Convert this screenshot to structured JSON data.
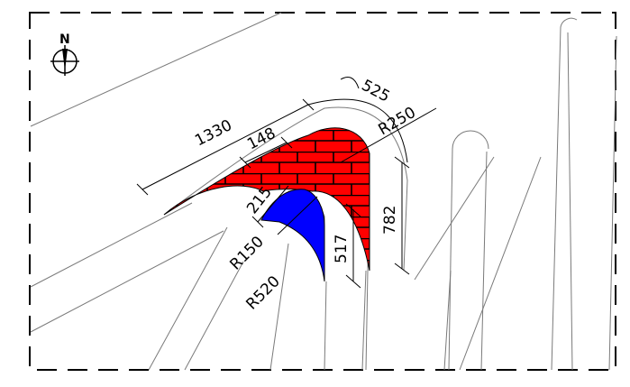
{
  "compass": {
    "label": "N"
  },
  "dimensions": {
    "length_1330": "1330",
    "length_148": "148",
    "arc_525": "525",
    "radius_250": "R250",
    "length_215": "215",
    "radius_150": "R150",
    "radius_520": "R520",
    "length_517": "517",
    "length_782": "782"
  },
  "colors": {
    "brick_fill": "#ff0000",
    "inner_fill": "#0000ff",
    "line": "#000000",
    "road_line": "#7a7a7a"
  },
  "icons": {
    "compass": "north-arrow-icon",
    "arc_symbol": "arc-length-icon"
  }
}
